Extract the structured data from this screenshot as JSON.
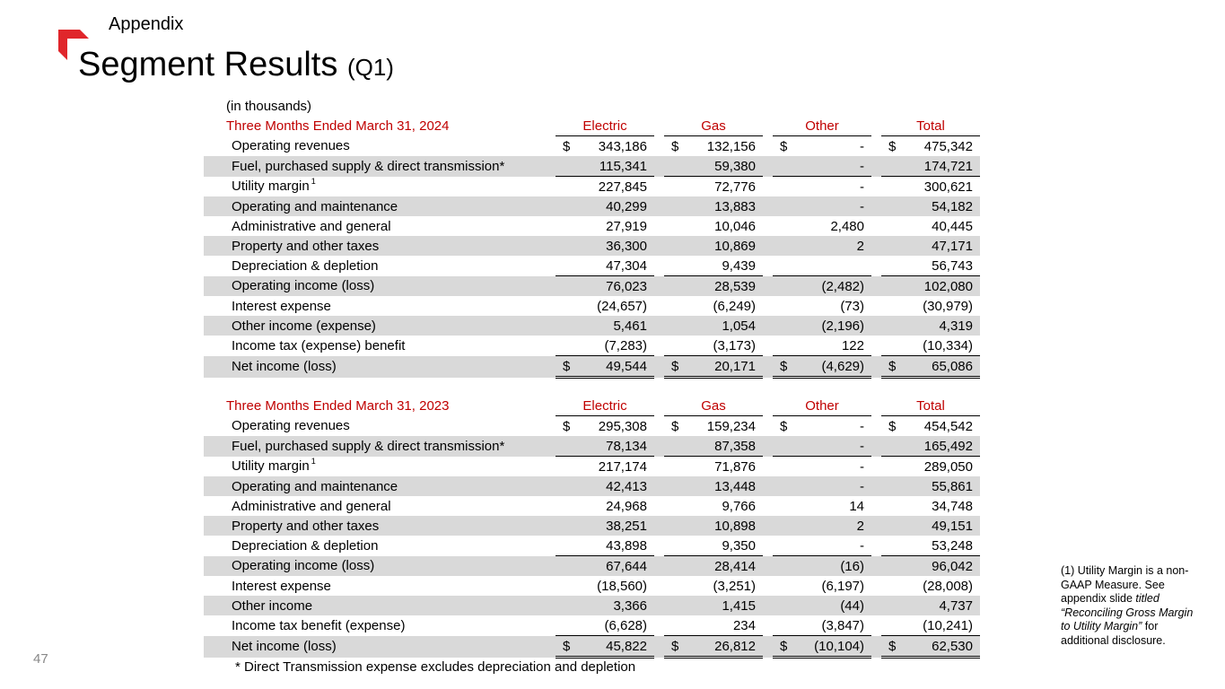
{
  "header": {
    "section": "Appendix",
    "title": "Segment Results",
    "title_suffix": "(Q1)",
    "units": "(in thousands)"
  },
  "columns": [
    "Electric",
    "Gas",
    "Other",
    "Total"
  ],
  "table_2024": {
    "period": "Three Months Ended March 31, 2024",
    "rows": [
      {
        "label": "Operating revenues",
        "cur": true,
        "values": [
          "343,186",
          "132,156",
          "-",
          "475,342"
        ]
      },
      {
        "label": "Fuel, purchased supply & direct transmission*",
        "values": [
          "115,341",
          "59,380",
          "-",
          "174,721"
        ]
      },
      {
        "label": "Utility margin",
        "sup": "1",
        "values": [
          "227,845",
          "72,776",
          "-",
          "300,621"
        ]
      },
      {
        "label": "Operating and maintenance",
        "values": [
          "40,299",
          "13,883",
          "-",
          "54,182"
        ]
      },
      {
        "label": "Administrative and general",
        "values": [
          "27,919",
          "10,046",
          "2,480",
          "40,445"
        ]
      },
      {
        "label": "Property and other taxes",
        "values": [
          "36,300",
          "10,869",
          "2",
          "47,171"
        ]
      },
      {
        "label": "Depreciation & depletion",
        "values": [
          "47,304",
          "9,439",
          "",
          "56,743"
        ]
      },
      {
        "label": "Operating income (loss)",
        "values": [
          "76,023",
          "28,539",
          "(2,482)",
          "102,080"
        ]
      },
      {
        "label": "Interest expense",
        "values": [
          "(24,657)",
          "(6,249)",
          "(73)",
          "(30,979)"
        ]
      },
      {
        "label": "Other income (expense)",
        "values": [
          "5,461",
          "1,054",
          "(2,196)",
          "4,319"
        ]
      },
      {
        "label": "Income tax (expense) benefit",
        "values": [
          "(7,283)",
          "(3,173)",
          "122",
          "(10,334)"
        ]
      },
      {
        "label": "Net income (loss)",
        "cur": true,
        "values": [
          "49,544",
          "20,171",
          "(4,629)",
          "65,086"
        ]
      }
    ]
  },
  "table_2023": {
    "period": "Three Months Ended March 31, 2023",
    "rows": [
      {
        "label": "Operating revenues",
        "cur": true,
        "values": [
          "295,308",
          "159,234",
          "-",
          "454,542"
        ]
      },
      {
        "label": "Fuel, purchased supply & direct transmission*",
        "values": [
          "78,134",
          "87,358",
          "-",
          "165,492"
        ]
      },
      {
        "label": "Utility margin",
        "sup": "1",
        "values": [
          "217,174",
          "71,876",
          "-",
          "289,050"
        ]
      },
      {
        "label": "Operating and maintenance",
        "values": [
          "42,413",
          "13,448",
          "-",
          "55,861"
        ]
      },
      {
        "label": "Administrative and general",
        "values": [
          "24,968",
          "9,766",
          "14",
          "34,748"
        ]
      },
      {
        "label": "Property and other taxes",
        "values": [
          "38,251",
          "10,898",
          "2",
          "49,151"
        ]
      },
      {
        "label": "Depreciation & depletion",
        "values": [
          "43,898",
          "9,350",
          "-",
          "53,248"
        ]
      },
      {
        "label": "Operating income (loss)",
        "values": [
          "67,644",
          "28,414",
          "(16)",
          "96,042"
        ]
      },
      {
        "label": "Interest expense",
        "values": [
          "(18,560)",
          "(3,251)",
          "(6,197)",
          "(28,008)"
        ]
      },
      {
        "label": "Other income",
        "values": [
          "3,366",
          "1,415",
          "(44)",
          "4,737"
        ]
      },
      {
        "label": "Income tax benefit (expense)",
        "values": [
          "(6,628)",
          "234",
          "(3,847)",
          "(10,241)"
        ]
      },
      {
        "label": "Net income (loss)",
        "cur": true,
        "values": [
          "45,822",
          "26,812",
          "(10,104)",
          "62,530"
        ]
      }
    ]
  },
  "currency_symbol": "$",
  "footnote_star": "* Direct Transmission expense excludes depreciation and depletion",
  "side_note": {
    "part1": "(1) Utility Margin is a non-GAAP Measure. See appendix slide ",
    "part2_italic": "titled “Reconciling Gross Margin to Utility Margin”",
    "part3": " for additional disclosure."
  },
  "page_number": "47",
  "colors": {
    "accent": "#c00000",
    "logo": "#e0262b",
    "shade": "#d9d9d9"
  }
}
